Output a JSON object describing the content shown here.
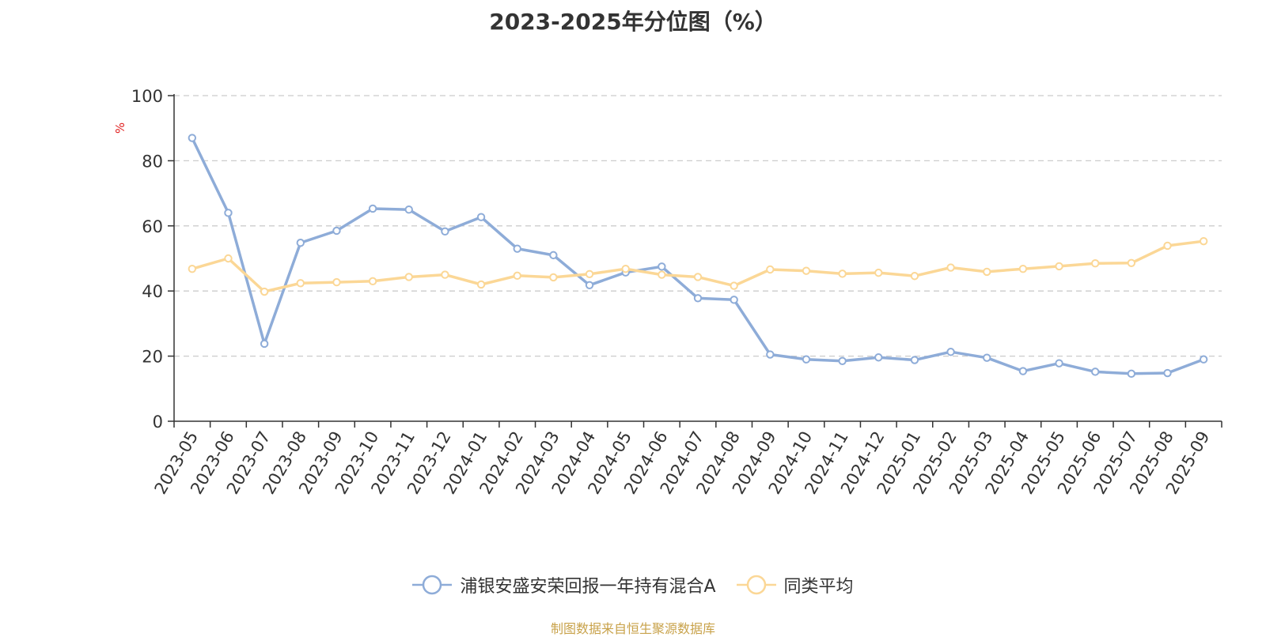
{
  "chart_data": {
    "type": "line",
    "title": "2023-2025年分位图（%）",
    "ylabel": "%",
    "xlabel": "",
    "ylim": [
      0,
      100
    ],
    "yticks": [
      0,
      20,
      40,
      60,
      80,
      100
    ],
    "grid": true,
    "legend_position": "bottom",
    "categories": [
      "2023-05",
      "2023-06",
      "2023-07",
      "2023-08",
      "2023-09",
      "2023-10",
      "2023-11",
      "2023-12",
      "2024-01",
      "2024-02",
      "2024-03",
      "2024-04",
      "2024-05",
      "2024-06",
      "2024-07",
      "2024-08",
      "2024-09",
      "2024-10",
      "2024-11",
      "2024-12",
      "2025-01",
      "2025-02",
      "2025-03",
      "2025-04",
      "2025-05",
      "2025-06",
      "2025-07",
      "2025-08",
      "2025-09"
    ],
    "series": [
      {
        "name": "浦银安盛安荣回报一年持有混合A",
        "color": "#8eacd8",
        "values": [
          87.0,
          64.0,
          23.8,
          54.8,
          58.5,
          65.3,
          65.0,
          58.3,
          62.7,
          53.0,
          51.0,
          41.8,
          45.7,
          47.5,
          37.8,
          37.3,
          20.5,
          19.0,
          18.5,
          19.6,
          18.8,
          21.3,
          19.5,
          15.4,
          17.8,
          15.2,
          14.6,
          14.8,
          19.0
        ]
      },
      {
        "name": "同类平均",
        "color": "#fbd796",
        "values": [
          46.8,
          50.0,
          39.8,
          42.4,
          42.7,
          43.0,
          44.3,
          45.0,
          42.0,
          44.7,
          44.2,
          45.2,
          46.8,
          45.0,
          44.3,
          41.6,
          46.6,
          46.2,
          45.3,
          45.6,
          44.6,
          47.2,
          45.9,
          46.8,
          47.6,
          48.5,
          48.6,
          53.9,
          55.3
        ]
      }
    ]
  },
  "footer": {
    "source": "制图数据来自恒生聚源数据库"
  }
}
